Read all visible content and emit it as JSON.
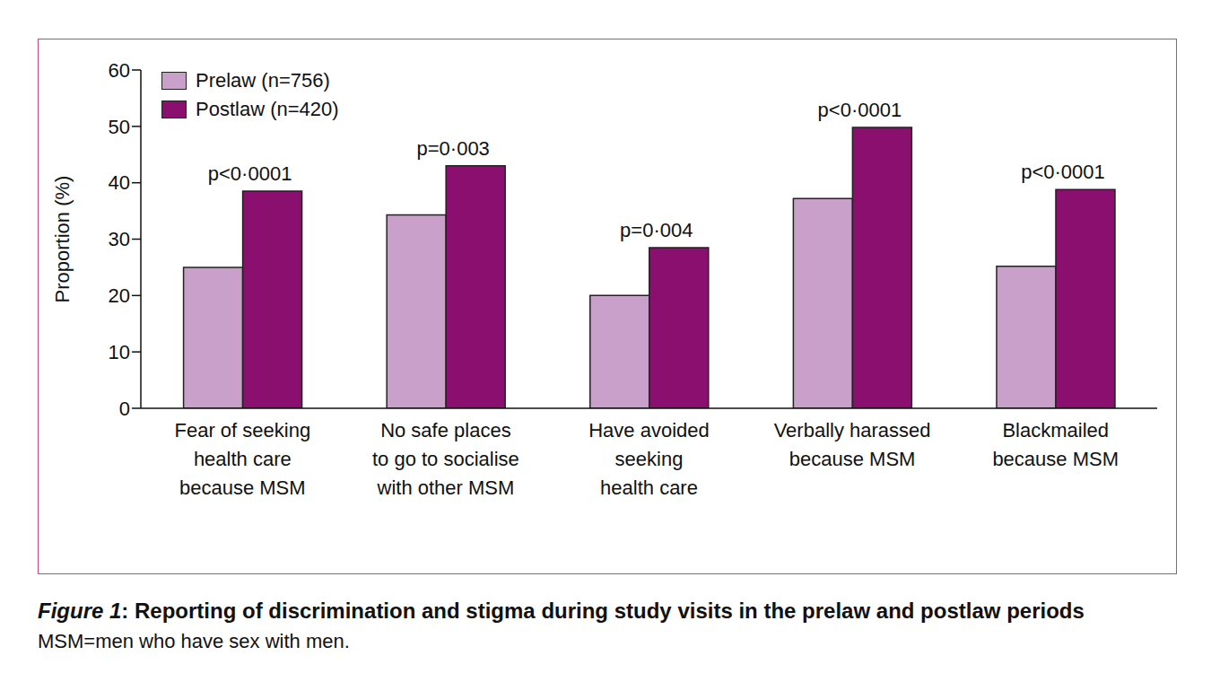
{
  "chart_data": {
    "type": "bar",
    "title": "Figure 1: Reporting of discrimination and stigma during study visits in the prelaw and postlaw periods",
    "subtitle": "MSM=men who have sex with men.",
    "y_label": "Proportion (%)",
    "categories": [
      "Fear of seeking\nhealth care\nbecause MSM",
      "No safe places\nto go to socialise\nwith other MSM",
      "Have avoided\nseeking\nhealth care",
      "Verbally harassed\nbecause MSM",
      "Blackmailed\nbecause MSM"
    ],
    "series": [
      {
        "name": "Prelaw (n=756)",
        "color": "#c9a0c9",
        "values": [
          25,
          34.3,
          20,
          37.2,
          25.2
        ]
      },
      {
        "name": "Postlaw (n=420)",
        "color": "#8a0f6f",
        "values": [
          38.5,
          43,
          28.5,
          49.8,
          38.8
        ]
      }
    ],
    "annotations": [
      "p<0·0001",
      "p=0·003",
      "p=0·004",
      "p<0·0001",
      "p<0·0001"
    ],
    "ylim": [
      0,
      60
    ],
    "yticks": [
      0,
      10,
      20,
      30,
      40,
      50,
      60
    ],
    "grid": false,
    "legend": "top-left"
  }
}
